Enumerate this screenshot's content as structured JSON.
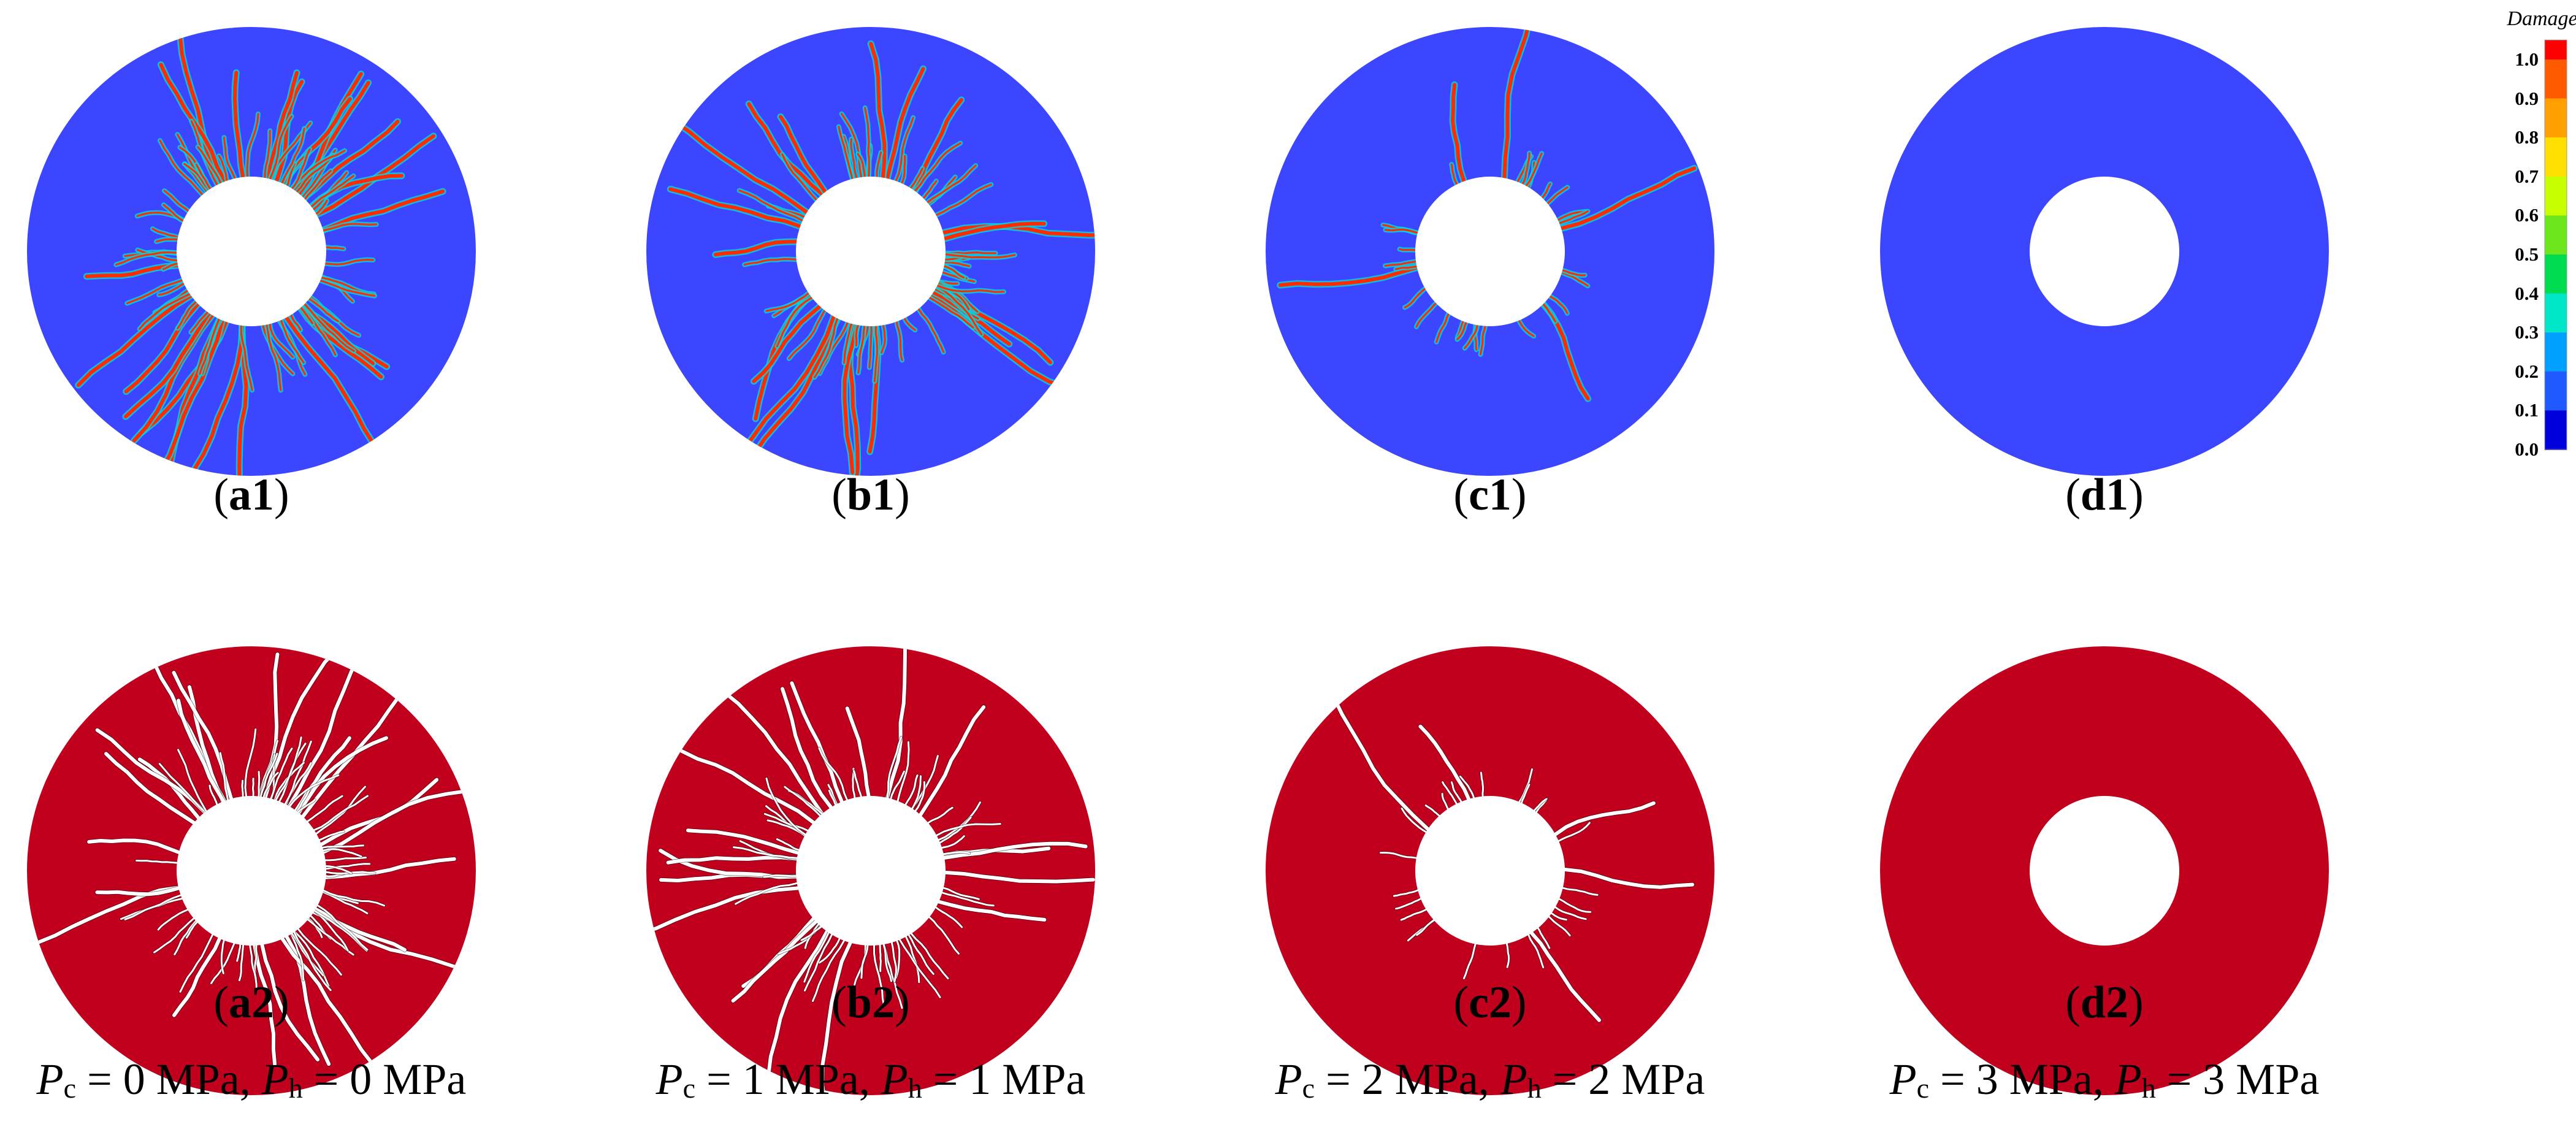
{
  "panels": [
    {
      "id": "a1",
      "letter": "a",
      "num": "1",
      "map": "damage",
      "crack_level": 1.0
    },
    {
      "id": "b1",
      "letter": "b",
      "num": "1",
      "map": "damage",
      "crack_level": 0.75
    },
    {
      "id": "c1",
      "letter": "c",
      "num": "1",
      "map": "damage",
      "crack_level": 0.2
    },
    {
      "id": "d1",
      "letter": "d",
      "num": "1",
      "map": "damage",
      "crack_level": 0.0
    },
    {
      "id": "a2",
      "letter": "a",
      "num": "2",
      "map": "crack",
      "crack_level": 1.0
    },
    {
      "id": "b2",
      "letter": "b",
      "num": "2",
      "map": "crack",
      "crack_level": 0.75
    },
    {
      "id": "c2",
      "letter": "c",
      "num": "2",
      "map": "crack",
      "crack_level": 0.2
    },
    {
      "id": "d2",
      "letter": "d",
      "num": "2",
      "map": "crack",
      "crack_level": 0.0
    }
  ],
  "conditions": [
    {
      "pc_sym": "P",
      "pc_sub": "c",
      "pc_val": " = 0 MPa,",
      "ph_sym": "P",
      "ph_sub": "h",
      "ph_val": " = 0 MPa"
    },
    {
      "pc_sym": "P",
      "pc_sub": "c",
      "pc_val": " = 1 MPa,",
      "ph_sym": "P",
      "ph_sub": "h",
      "ph_val": " = 1 MPa"
    },
    {
      "pc_sym": "P",
      "pc_sub": "c",
      "pc_val": " = 2 MPa,",
      "ph_sym": "P",
      "ph_sub": "h",
      "ph_val": " = 2 MPa"
    },
    {
      "pc_sym": "P",
      "pc_sub": "c",
      "pc_val": " = 3 MPa,",
      "ph_sym": "P",
      "ph_sub": "h",
      "ph_val": " = 3 MPa"
    }
  ],
  "legend": {
    "title": "Damage",
    "ticks": [
      "1.0",
      "0.9",
      "0.8",
      "0.7",
      "0.6",
      "0.5",
      "0.4",
      "0.3",
      "0.2",
      "0.1",
      "0.0"
    ],
    "colors_top_to_bottom": [
      "#ff0000",
      "#ff5a00",
      "#ffa000",
      "#ffe000",
      "#c8ff00",
      "#6ee61e",
      "#00dc50",
      "#00e6c8",
      "#00a0ff",
      "#1e5aff",
      "#0000dc"
    ]
  },
  "colors": {
    "damage_background": "#3c46ff",
    "crack_background": "#c0001c",
    "crack_line": "#ffffff",
    "hole": "#ffffff"
  }
}
